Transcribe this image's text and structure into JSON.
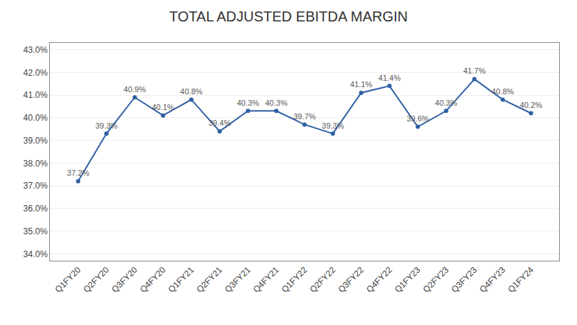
{
  "chart_data": {
    "type": "line",
    "title": "TOTAL ADJUSTED EBITDA MARGIN",
    "categories": [
      "Q1FY20",
      "Q2FY20",
      "Q3FY20",
      "Q4FY20",
      "Q1FY21",
      "Q2FY21",
      "Q3FY21",
      "Q4FY21",
      "Q1FY22",
      "Q2FY22",
      "Q3FY22",
      "Q4FY22",
      "Q1FY23",
      "Q2FY23",
      "Q3FY23",
      "Q4FY23",
      "Q1FY24"
    ],
    "values": [
      37.2,
      39.3,
      40.9,
      40.1,
      40.8,
      39.4,
      40.3,
      40.3,
      39.7,
      39.3,
      41.1,
      41.4,
      39.6,
      40.3,
      41.7,
      40.8,
      40.2
    ],
    "value_labels": [
      "37.2%",
      "39.3%",
      "40.9%",
      "40.1%",
      "40.8%",
      "39.4%",
      "40.3%",
      "40.3%",
      "39.7%",
      "39.3%",
      "41.1%",
      "41.4%",
      "39.6%",
      "40.3%",
      "41.7%",
      "40.8%",
      "40.2%"
    ],
    "data_labels": true,
    "color": "#2E5FA3",
    "marker": "circle",
    "ylim": [
      33.7,
      43.3
    ],
    "yticks": [
      {
        "value": 34.0,
        "label": "34.0%"
      },
      {
        "value": 35.0,
        "label": "35.0%"
      },
      {
        "value": 36.0,
        "label": "36.0%"
      },
      {
        "value": 37.0,
        "label": "37.0%"
      },
      {
        "value": 38.0,
        "label": "38.0%"
      },
      {
        "value": 39.0,
        "label": "39.0%"
      },
      {
        "value": 40.0,
        "label": "40.0%"
      },
      {
        "value": 41.0,
        "label": "41.0%"
      },
      {
        "value": 42.0,
        "label": "42.0%"
      },
      {
        "value": 43.0,
        "label": "43.0%"
      }
    ],
    "grid": true
  }
}
